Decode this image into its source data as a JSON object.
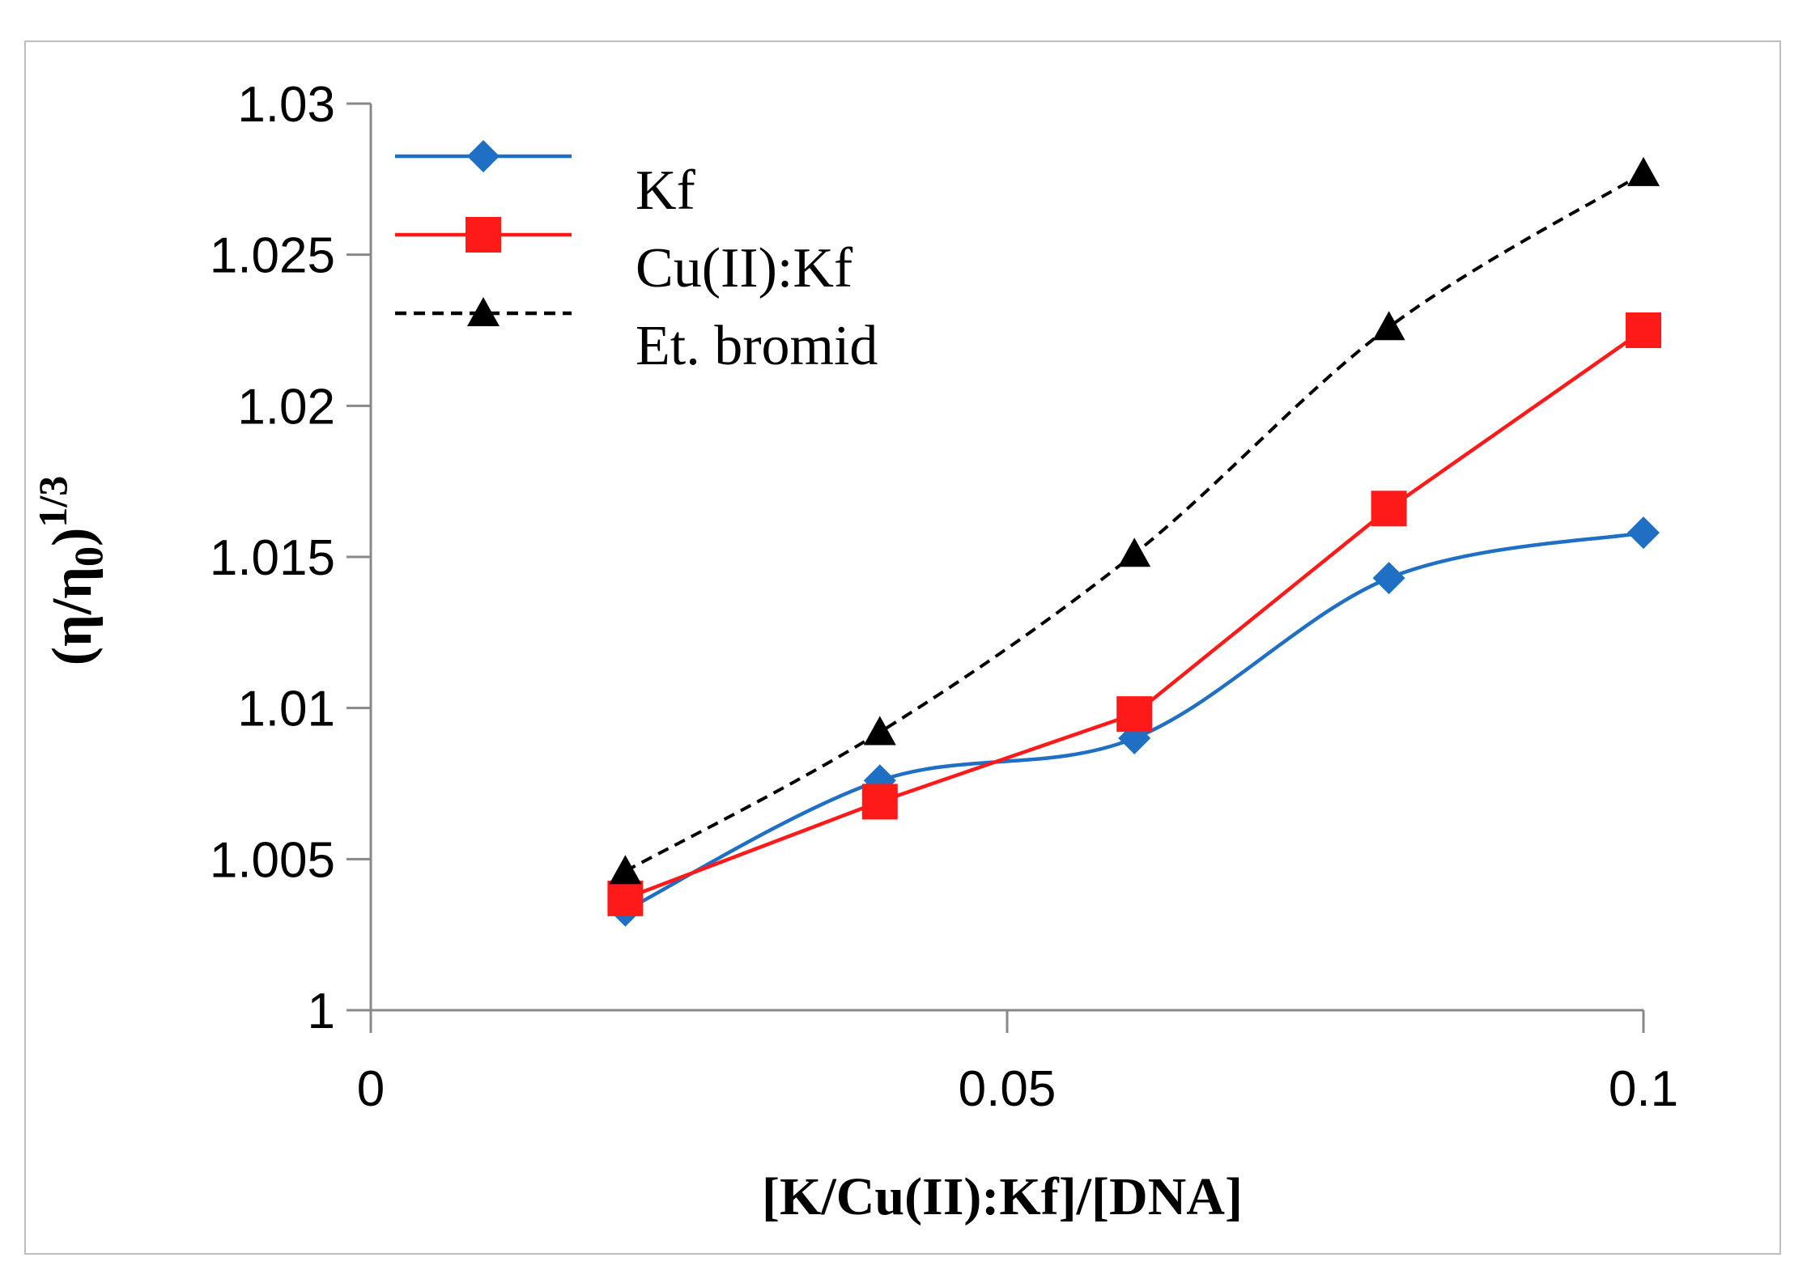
{
  "chart_data": {
    "type": "line",
    "title": "",
    "xlabel": "[K/Cu(II):Kf]/[DNA]",
    "ylabel_main": "(η/η",
    "ylabel_sub": "0",
    "ylabel_close": ")",
    "ylabel_sup": "1/3",
    "xlim": [
      0,
      0.1
    ],
    "ylim": [
      1,
      1.03
    ],
    "x_ticks": [
      0,
      0.05,
      0.1
    ],
    "x_tick_labels": [
      "0",
      "0.05",
      "0.1"
    ],
    "y_ticks": [
      1,
      1.005,
      1.01,
      1.015,
      1.02,
      1.025,
      1.03
    ],
    "y_tick_labels": [
      "1",
      "1.005",
      "1.01",
      "1.015",
      "1.02",
      "1.025",
      "1.03"
    ],
    "legend_position": "top-left",
    "series": [
      {
        "name": "Kf",
        "color": "#1f6fc4",
        "marker": "diamond",
        "dash": "solid",
        "smooth": true,
        "x": [
          0.02,
          0.04,
          0.06,
          0.08,
          0.1
        ],
        "y": [
          1.0033,
          1.0076,
          1.009,
          1.0143,
          1.0158
        ]
      },
      {
        "name": "Cu(II):Kf",
        "color": "#ff1a1a",
        "marker": "square",
        "dash": "solid",
        "smooth": false,
        "x": [
          0.02,
          0.04,
          0.06,
          0.08,
          0.1
        ],
        "y": [
          1.0037,
          1.0069,
          1.0098,
          1.0166,
          1.0225
        ]
      },
      {
        "name": "Et. bromid",
        "color": "#000000",
        "marker": "triangle",
        "dash": "dashed",
        "smooth": true,
        "x": [
          0.02,
          0.04,
          0.06,
          0.08,
          0.1
        ],
        "y": [
          1.0046,
          1.0092,
          1.0151,
          1.0226,
          1.0277
        ]
      }
    ]
  }
}
